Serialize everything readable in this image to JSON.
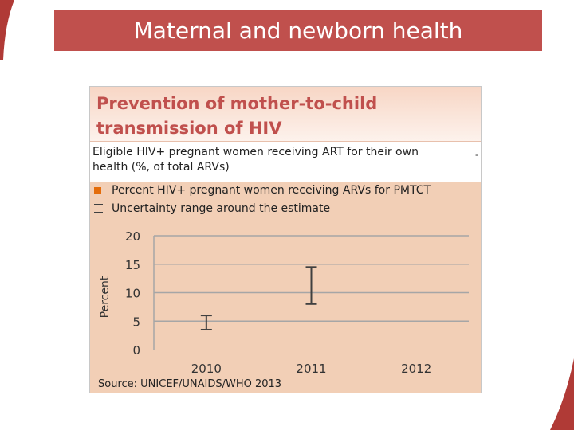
{
  "slide": {
    "banner_title": "Maternal and newborn health"
  },
  "panel": {
    "title": "Prevention of mother-to-child transmission of HIV",
    "subtitle": "Eligible HIV+ pregnant women receiving ART for their own health (%, of total ARVs)",
    "dash": "-",
    "source": "Source: UNICEF/UNAIDS/WHO 2013"
  },
  "legend": {
    "series_label": "Percent HIV+ pregnant women receiving ARVs for PMTCT",
    "uncertainty_label": "Uncertainty range around the estimate",
    "series_color": "#e46c0a"
  },
  "colors": {
    "banner": "#c0504d",
    "title_text": "#c0504d",
    "chart_bg": "#f2cfb6",
    "gridline": "#a6a6a6",
    "error_bar": "#404040"
  },
  "chart_data": {
    "type": "bar",
    "title": "Prevention of mother-to-child transmission of HIV",
    "ylabel": "Percent",
    "xlabel": "",
    "categories": [
      "2010",
      "2011",
      "2012"
    ],
    "yticks": [
      0,
      5,
      10,
      15,
      20
    ],
    "ylim": [
      0,
      20
    ],
    "grid": true,
    "legend_position": "top",
    "series": [
      {
        "name": "Percent HIV+ pregnant women receiving ARVs for PMTCT",
        "values": [
          null,
          null,
          null
        ]
      }
    ],
    "uncertainty": [
      {
        "category": "2010",
        "low": 3.5,
        "high": 6
      },
      {
        "category": "2011",
        "low": 8,
        "high": 14.5
      },
      {
        "category": "2012",
        "low": null,
        "high": null
      }
    ]
  }
}
